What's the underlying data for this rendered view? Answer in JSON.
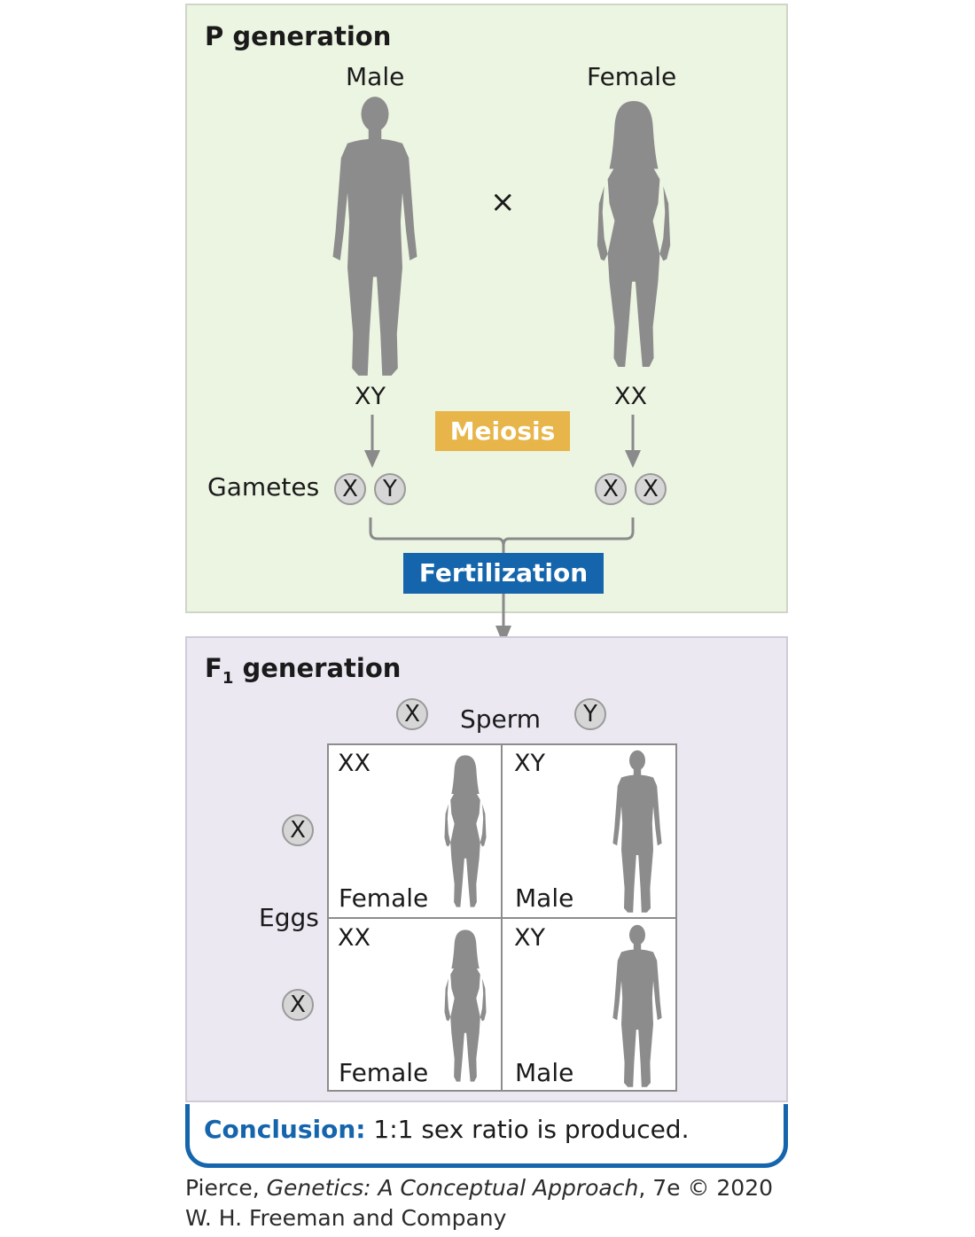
{
  "p_generation": {
    "title": "P generation",
    "male_label": "Male",
    "female_label": "Female",
    "cross_symbol": "×",
    "male_genotype": "XY",
    "female_genotype": "XX",
    "meiosis_label": "Meiosis",
    "gametes_label": "Gametes",
    "male_gametes": [
      "X",
      "Y"
    ],
    "female_gametes": [
      "X",
      "X"
    ],
    "fertilization_label": "Fertilization"
  },
  "f1_generation": {
    "title_main": "F",
    "title_sub": "1",
    "title_rest": " generation",
    "sperm_label": "Sperm",
    "sperm": [
      "X",
      "Y"
    ],
    "eggs_label": "Eggs",
    "eggs": [
      "X",
      "X"
    ],
    "cells": [
      {
        "genotype": "XX",
        "sex": "Female"
      },
      {
        "genotype": "XY",
        "sex": "Male"
      },
      {
        "genotype": "XX",
        "sex": "Female"
      },
      {
        "genotype": "XY",
        "sex": "Male"
      }
    ]
  },
  "conclusion": {
    "label": "Conclusion:",
    "text": " 1:1 sex ratio is produced."
  },
  "credit": {
    "author": "Pierce, ",
    "book": "Genetics: A Conceptual Approach",
    "edition": ", 7e © 2020",
    "publisher": "W. H. Freeman and Company"
  },
  "colors": {
    "p_panel": "#ecf4e2",
    "f1_panel": "#ebe8f2",
    "meiosis": "#e7b549",
    "fertilization": "#1565ad",
    "silhouette": "#8c8c8c"
  }
}
